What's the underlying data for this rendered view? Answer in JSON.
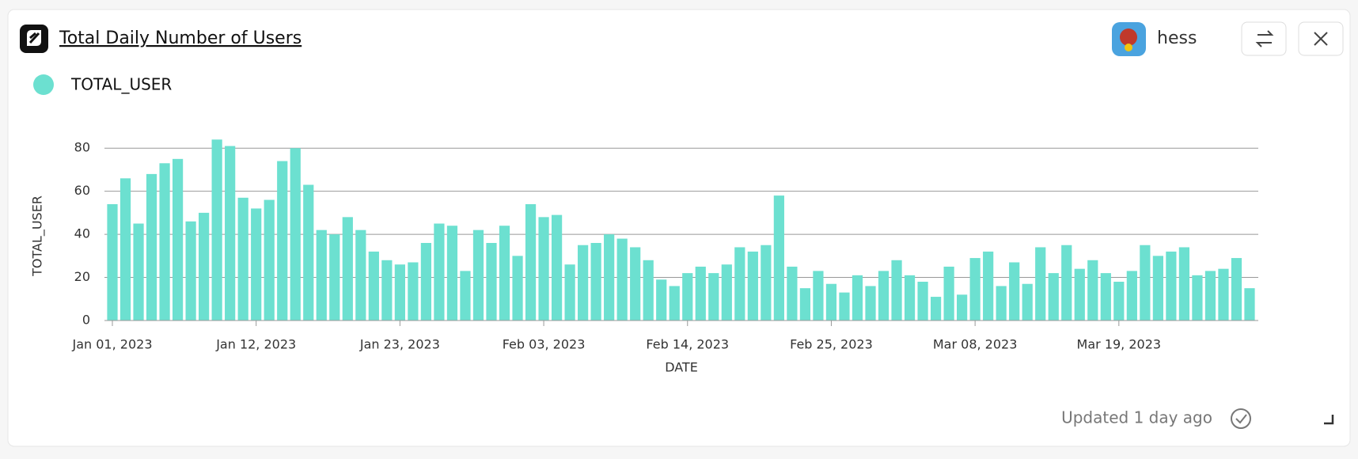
{
  "header": {
    "title": "Total Daily Number of Users",
    "user": "hess"
  },
  "footer": {
    "status": "Updated 1 day ago"
  },
  "chart_data": {
    "type": "bar",
    "x_label": "DATE",
    "y_label": "TOTAL_USER",
    "x": [
      "2023-01-01",
      "2023-01-02",
      "2023-01-03",
      "2023-01-04",
      "2023-01-05",
      "2023-01-06",
      "2023-01-07",
      "2023-01-08",
      "2023-01-09",
      "2023-01-10",
      "2023-01-11",
      "2023-01-12",
      "2023-01-13",
      "2023-01-14",
      "2023-01-15",
      "2023-01-16",
      "2023-01-17",
      "2023-01-18",
      "2023-01-19",
      "2023-01-20",
      "2023-01-21",
      "2023-01-22",
      "2023-01-23",
      "2023-01-24",
      "2023-01-25",
      "2023-01-26",
      "2023-01-27",
      "2023-01-28",
      "2023-01-29",
      "2023-01-30",
      "2023-01-31",
      "2023-02-01",
      "2023-02-02",
      "2023-02-03",
      "2023-02-04",
      "2023-02-05",
      "2023-02-06",
      "2023-02-07",
      "2023-02-08",
      "2023-02-09",
      "2023-02-10",
      "2023-02-11",
      "2023-02-12",
      "2023-02-13",
      "2023-02-14",
      "2023-02-15",
      "2023-02-16",
      "2023-02-17",
      "2023-02-18",
      "2023-02-19",
      "2023-02-20",
      "2023-02-21",
      "2023-02-22",
      "2023-02-23",
      "2023-02-24",
      "2023-02-25",
      "2023-02-26",
      "2023-02-27",
      "2023-02-28",
      "2023-03-01",
      "2023-03-02",
      "2023-03-03",
      "2023-03-04",
      "2023-03-05",
      "2023-03-06",
      "2023-03-07",
      "2023-03-08",
      "2023-03-09",
      "2023-03-10",
      "2023-03-11",
      "2023-03-12",
      "2023-03-13",
      "2023-03-14",
      "2023-03-15",
      "2023-03-16",
      "2023-03-17",
      "2023-03-18",
      "2023-03-19",
      "2023-03-20",
      "2023-03-21",
      "2023-03-22",
      "2023-03-23",
      "2023-03-24",
      "2023-03-25",
      "2023-03-26",
      "2023-03-27",
      "2023-03-28",
      "2023-03-29"
    ],
    "series": [
      {
        "name": "TOTAL_USER",
        "color": "#6ce0d0",
        "values": [
          54,
          66,
          45,
          68,
          73,
          75,
          46,
          50,
          84,
          81,
          57,
          52,
          56,
          74,
          80,
          63,
          42,
          40,
          48,
          42,
          32,
          28,
          26,
          27,
          36,
          45,
          44,
          23,
          42,
          36,
          44,
          30,
          54,
          48,
          49,
          26,
          35,
          36,
          40,
          38,
          34,
          28,
          19,
          16,
          22,
          25,
          22,
          26,
          34,
          32,
          35,
          58,
          25,
          15,
          23,
          17,
          13,
          21,
          16,
          23,
          28,
          21,
          18,
          11,
          25,
          12,
          29,
          32,
          16,
          27,
          17,
          34,
          22,
          35,
          24,
          28,
          22,
          18,
          23,
          35,
          30,
          32,
          34,
          21,
          23,
          24,
          29,
          15
        ]
      }
    ],
    "xlim": [
      "2023-01-01",
      "2023-03-29"
    ],
    "xticks": [
      {
        "value": "2023-01-01",
        "label": "Jan 01, 2023"
      },
      {
        "value": "2023-01-12",
        "label": "Jan 12, 2023"
      },
      {
        "value": "2023-01-23",
        "label": "Jan 23, 2023"
      },
      {
        "value": "2023-02-03",
        "label": "Feb 03, 2023"
      },
      {
        "value": "2023-02-14",
        "label": "Feb 14, 2023"
      },
      {
        "value": "2023-02-25",
        "label": "Feb 25, 2023"
      },
      {
        "value": "2023-03-08",
        "label": "Mar 08, 2023"
      },
      {
        "value": "2023-03-19",
        "label": "Mar 19, 2023"
      }
    ],
    "ylim": [
      0,
      90
    ],
    "yticks": [
      0,
      20,
      40,
      60,
      80
    ],
    "grid": true
  }
}
